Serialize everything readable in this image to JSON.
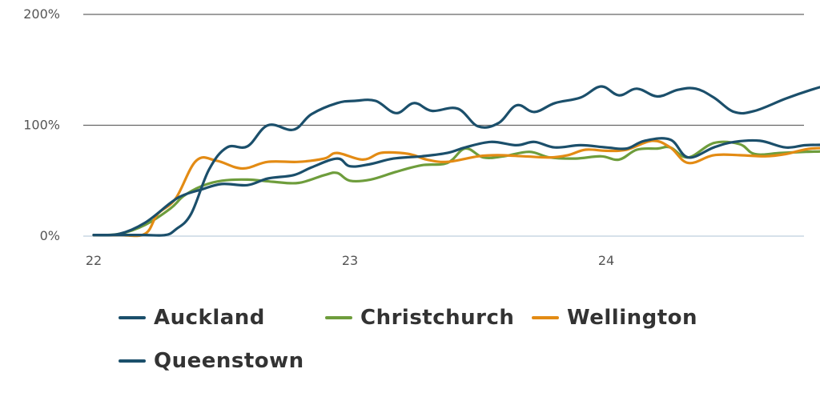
{
  "chart_data": {
    "type": "line",
    "xlabel": "",
    "ylabel": "",
    "x_ticks": [
      "22",
      "23",
      "24"
    ],
    "y_ticks": [
      "0%",
      "100%",
      "200%"
    ],
    "ylim": [
      0,
      200
    ],
    "xlim": [
      22.0,
      24.92
    ],
    "grid": "horizontal",
    "legend_position": "bottom",
    "series": [
      {
        "name": "Auckland",
        "color": "#1b4f6b",
        "points": [
          [
            22.0,
            1
          ],
          [
            22.1,
            2
          ],
          [
            22.2,
            12
          ],
          [
            22.3,
            30
          ],
          [
            22.35,
            37
          ],
          [
            22.42,
            42
          ],
          [
            22.5,
            47
          ],
          [
            22.6,
            46
          ],
          [
            22.68,
            52
          ],
          [
            22.78,
            55
          ],
          [
            22.85,
            62
          ],
          [
            22.95,
            70
          ],
          [
            23.0,
            63
          ],
          [
            23.08,
            65
          ],
          [
            23.17,
            70
          ],
          [
            23.28,
            72
          ],
          [
            23.38,
            75
          ],
          [
            23.45,
            80
          ],
          [
            23.55,
            85
          ],
          [
            23.65,
            82
          ],
          [
            23.72,
            85
          ],
          [
            23.8,
            80
          ],
          [
            23.9,
            82
          ],
          [
            24.0,
            80
          ],
          [
            24.08,
            79
          ],
          [
            24.15,
            86
          ],
          [
            24.25,
            87
          ],
          [
            24.32,
            71
          ],
          [
            24.42,
            80
          ],
          [
            24.5,
            85
          ],
          [
            24.6,
            86
          ],
          [
            24.7,
            80
          ],
          [
            24.78,
            82
          ],
          [
            24.88,
            82
          ],
          [
            24.92,
            80
          ]
        ]
      },
      {
        "name": "Christchurch",
        "color": "#6e9d3c",
        "points": [
          [
            22.0,
            1
          ],
          [
            22.1,
            2
          ],
          [
            22.2,
            10
          ],
          [
            22.3,
            25
          ],
          [
            22.35,
            36
          ],
          [
            22.42,
            45
          ],
          [
            22.5,
            50
          ],
          [
            22.6,
            51
          ],
          [
            22.7,
            49
          ],
          [
            22.8,
            48
          ],
          [
            22.9,
            55
          ],
          [
            22.95,
            57
          ],
          [
            23.0,
            50
          ],
          [
            23.08,
            51
          ],
          [
            23.18,
            58
          ],
          [
            23.28,
            64
          ],
          [
            23.38,
            66
          ],
          [
            23.45,
            79
          ],
          [
            23.52,
            71
          ],
          [
            23.6,
            72
          ],
          [
            23.7,
            76
          ],
          [
            23.78,
            71
          ],
          [
            23.88,
            70
          ],
          [
            23.98,
            72
          ],
          [
            24.05,
            69
          ],
          [
            24.12,
            78
          ],
          [
            24.2,
            79
          ],
          [
            24.25,
            80
          ],
          [
            24.32,
            71
          ],
          [
            24.42,
            84
          ],
          [
            24.52,
            83
          ],
          [
            24.58,
            74
          ],
          [
            24.68,
            75
          ],
          [
            24.78,
            76
          ],
          [
            24.88,
            77
          ],
          [
            24.92,
            80
          ]
        ]
      },
      {
        "name": "Wellington",
        "color": "#e38b14",
        "points": [
          [
            22.0,
            1
          ],
          [
            22.1,
            1
          ],
          [
            22.2,
            2
          ],
          [
            22.25,
            20
          ],
          [
            22.32,
            34
          ],
          [
            22.4,
            68
          ],
          [
            22.48,
            68
          ],
          [
            22.58,
            61
          ],
          [
            22.68,
            67
          ],
          [
            22.8,
            67
          ],
          [
            22.9,
            70
          ],
          [
            22.95,
            75
          ],
          [
            23.05,
            69
          ],
          [
            23.12,
            75
          ],
          [
            23.2,
            75
          ],
          [
            23.25,
            73
          ],
          [
            23.3,
            69
          ],
          [
            23.38,
            67
          ],
          [
            23.5,
            72
          ],
          [
            23.58,
            73
          ],
          [
            23.68,
            72
          ],
          [
            23.78,
            71
          ],
          [
            23.85,
            73
          ],
          [
            23.92,
            78
          ],
          [
            24.0,
            77
          ],
          [
            24.08,
            78
          ],
          [
            24.18,
            86
          ],
          [
            24.25,
            80
          ],
          [
            24.32,
            66
          ],
          [
            24.42,
            73
          ],
          [
            24.52,
            73
          ],
          [
            24.62,
            72
          ],
          [
            24.7,
            74
          ],
          [
            24.8,
            79
          ],
          [
            24.92,
            79
          ]
        ]
      },
      {
        "name": "Queenstown",
        "color": "#1b4f6b",
        "points": [
          [
            22.0,
            1
          ],
          [
            22.1,
            1
          ],
          [
            22.2,
            1
          ],
          [
            22.28,
            1
          ],
          [
            22.32,
            6
          ],
          [
            22.38,
            20
          ],
          [
            22.45,
            60
          ],
          [
            22.52,
            80
          ],
          [
            22.6,
            81
          ],
          [
            22.68,
            100
          ],
          [
            22.78,
            96
          ],
          [
            22.85,
            110
          ],
          [
            22.95,
            120
          ],
          [
            23.02,
            122
          ],
          [
            23.1,
            122
          ],
          [
            23.18,
            111
          ],
          [
            23.25,
            120
          ],
          [
            23.32,
            113
          ],
          [
            23.42,
            115
          ],
          [
            23.5,
            99
          ],
          [
            23.58,
            102
          ],
          [
            23.65,
            118
          ],
          [
            23.72,
            112
          ],
          [
            23.8,
            120
          ],
          [
            23.9,
            125
          ],
          [
            23.98,
            135
          ],
          [
            24.05,
            127
          ],
          [
            24.12,
            133
          ],
          [
            24.2,
            126
          ],
          [
            24.28,
            132
          ],
          [
            24.35,
            133
          ],
          [
            24.42,
            125
          ],
          [
            24.5,
            112
          ],
          [
            24.58,
            113
          ],
          [
            24.7,
            124
          ],
          [
            24.8,
            132
          ],
          [
            24.92,
            140
          ]
        ]
      }
    ]
  },
  "legend": {
    "items": [
      {
        "label": "Auckland",
        "color": "#1b4f6b"
      },
      {
        "label": "Christchurch",
        "color": "#6e9d3c"
      },
      {
        "label": "Wellington",
        "color": "#e38b14"
      },
      {
        "label": "Queenstown",
        "color": "#1b4f6b"
      }
    ]
  }
}
